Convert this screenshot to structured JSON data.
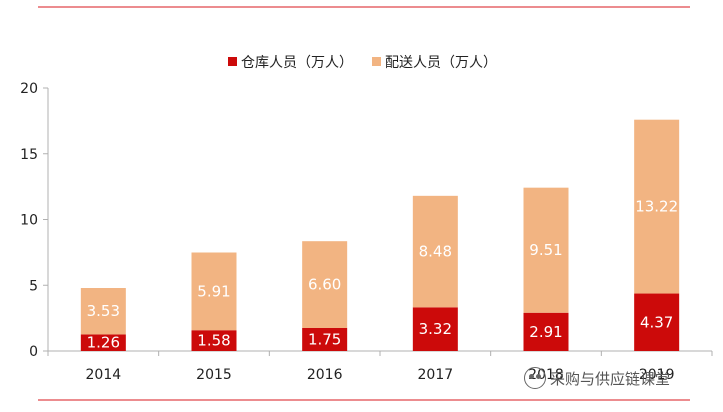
{
  "chart_data": {
    "type": "bar",
    "stacked": true,
    "categories": [
      "2014",
      "2015",
      "2016",
      "2017",
      "2018",
      "2019"
    ],
    "series": [
      {
        "name": "仓库人员（万人）",
        "values": [
          1.26,
          1.58,
          1.75,
          3.32,
          2.91,
          4.37
        ],
        "color": "#cc0a0a"
      },
      {
        "name": "配送人员（万人）",
        "values": [
          3.53,
          5.91,
          6.6,
          8.48,
          9.51,
          13.22
        ],
        "color": "#f2b482"
      }
    ],
    "data_labels": {
      "warehouse": [
        "1.26",
        "1.58",
        "1.75",
        "3.32",
        "2.91",
        "4.37"
      ],
      "delivery": [
        "3.53",
        "5.91",
        "6.60",
        "8.48",
        "9.51",
        "13.22"
      ]
    },
    "yticks": [
      "0",
      "5",
      "10",
      "15",
      "20"
    ],
    "ylim": [
      0,
      20
    ],
    "legend_position": "top-center",
    "grid": false,
    "accent_color": "#e0474c"
  },
  "watermark": {
    "icon": "wechat-icon",
    "text": "采购与供应链课堂"
  }
}
